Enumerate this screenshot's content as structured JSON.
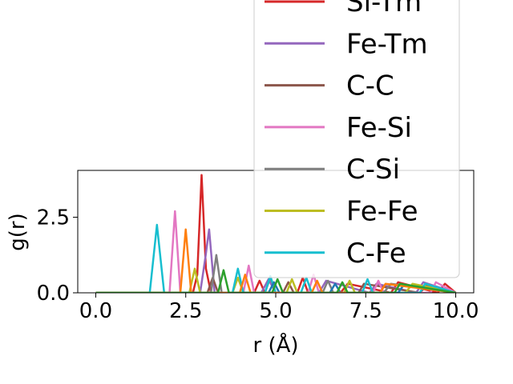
{
  "chart_data": {
    "type": "line",
    "xlabel": "r (Å)",
    "ylabel": "g(r)",
    "xlim": [
      -0.5,
      10.5
    ],
    "ylim": [
      0.0,
      4.05
    ],
    "x_ticks": [
      "0.0",
      "2.5",
      "5.0",
      "7.5",
      "10.0"
    ],
    "y_ticks": [
      "0.0",
      "2.5"
    ],
    "legend_placement": "upper-right, extending above the plot",
    "legend_entries_visible": [
      "Si-Tm",
      "Fe-Tm",
      "C-C",
      "Fe-Si",
      "C-Si",
      "Fe-Fe",
      "C-Fe"
    ],
    "series": [
      {
        "name": "Si-Tm",
        "color": "#d62728",
        "x": [
          0,
          2.7,
          2.82,
          2.94,
          3.06,
          3.2,
          4.4,
          4.55,
          4.7,
          5.6,
          5.75,
          5.9,
          6.8,
          7.0,
          8.2,
          8.4,
          9.5,
          9.7,
          10
        ],
        "y": [
          0,
          0,
          0.6,
          3.9,
          0.8,
          0,
          0,
          0.4,
          0,
          0,
          0.5,
          0,
          0,
          0.3,
          0,
          0.35,
          0,
          0.3,
          0
        ]
      },
      {
        "name": "Fe-Tm",
        "color": "#9467bd",
        "x": [
          0,
          2.9,
          3.05,
          3.15,
          3.3,
          4.6,
          4.8,
          5.0,
          6.2,
          6.4,
          7.6,
          7.8,
          8.9,
          9.1,
          10
        ],
        "y": [
          0,
          0,
          1.2,
          2.1,
          0,
          0,
          0.45,
          0,
          0,
          0.4,
          0,
          0.3,
          0,
          0.35,
          0
        ]
      },
      {
        "name": "C-C",
        "color": "#8c564b",
        "x": [
          0,
          3.1,
          3.25,
          3.4,
          5.2,
          5.35,
          5.5,
          7.3,
          7.45,
          9.0,
          9.2,
          10
        ],
        "y": [
          0,
          0,
          0.5,
          0,
          0,
          0.35,
          0,
          0,
          0.3,
          0,
          0.25,
          0
        ]
      },
      {
        "name": "Fe-Si",
        "color": "#e377c2",
        "x": [
          0,
          2.05,
          2.2,
          2.35,
          4.1,
          4.25,
          4.4,
          5.9,
          6.05,
          6.2,
          7.7,
          7.85,
          8.0,
          9.3,
          9.45,
          10
        ],
        "y": [
          0,
          0,
          2.7,
          0,
          0,
          0.9,
          0,
          0,
          0.6,
          0,
          0,
          0.4,
          0,
          0,
          0.35,
          0
        ]
      },
      {
        "name": "C-Si",
        "color": "#7f7f7f",
        "x": [
          0,
          3.2,
          3.35,
          3.5,
          4.7,
          4.85,
          5.0,
          6.3,
          6.45,
          6.6,
          8.0,
          8.2,
          10
        ],
        "y": [
          0,
          0,
          1.25,
          0,
          0,
          0.5,
          0,
          0,
          0.4,
          0,
          0,
          0.3,
          0
        ]
      },
      {
        "name": "Fe-Fe",
        "color": "#bcbd22",
        "x": [
          0,
          2.6,
          2.75,
          2.9,
          3.8,
          3.95,
          4.1,
          5.3,
          5.45,
          5.6,
          6.9,
          7.05,
          7.2,
          8.6,
          8.8,
          10
        ],
        "y": [
          0,
          0,
          0.8,
          0,
          0,
          0.5,
          0,
          0,
          0.45,
          0,
          0,
          0.4,
          0,
          0,
          0.3,
          0
        ]
      },
      {
        "name": "C-Fe",
        "color": "#17becf",
        "x": [
          0,
          1.5,
          1.7,
          1.9,
          3.8,
          3.95,
          4.1,
          4.7,
          4.85,
          5.0,
          5.7,
          5.85,
          6.0,
          7.4,
          7.55,
          7.7,
          9.0,
          9.15,
          10
        ],
        "y": [
          0,
          0,
          2.25,
          0,
          0,
          0.8,
          0,
          0,
          0.55,
          0,
          0,
          0.5,
          0,
          0,
          0.45,
          0,
          0,
          0.3,
          0
        ]
      },
      {
        "name": "",
        "color": "#1f77b4",
        "x": [
          0,
          4.8,
          4.95,
          5.1,
          6.5,
          6.65,
          6.8,
          8.4,
          8.55,
          10
        ],
        "y": [
          0,
          0,
          0.35,
          0,
          0,
          0.3,
          0,
          0,
          0.25,
          0
        ]
      },
      {
        "name": "",
        "color": "#ff7f0e",
        "x": [
          0,
          2.35,
          2.5,
          2.65,
          4.0,
          4.15,
          4.3,
          6.0,
          6.15,
          6.3,
          7.9,
          8.05,
          10
        ],
        "y": [
          0,
          0,
          2.1,
          0,
          0,
          0.6,
          0,
          0,
          0.4,
          0,
          0,
          0.3,
          0
        ]
      },
      {
        "name": "",
        "color": "#2ca02c",
        "x": [
          0,
          3.4,
          3.55,
          3.7,
          4.9,
          5.05,
          5.2,
          6.7,
          6.85,
          7.0,
          8.3,
          8.45,
          10
        ],
        "y": [
          0,
          0,
          0.75,
          0,
          0,
          0.45,
          0,
          0,
          0.35,
          0,
          0,
          0.3,
          0
        ]
      }
    ]
  }
}
